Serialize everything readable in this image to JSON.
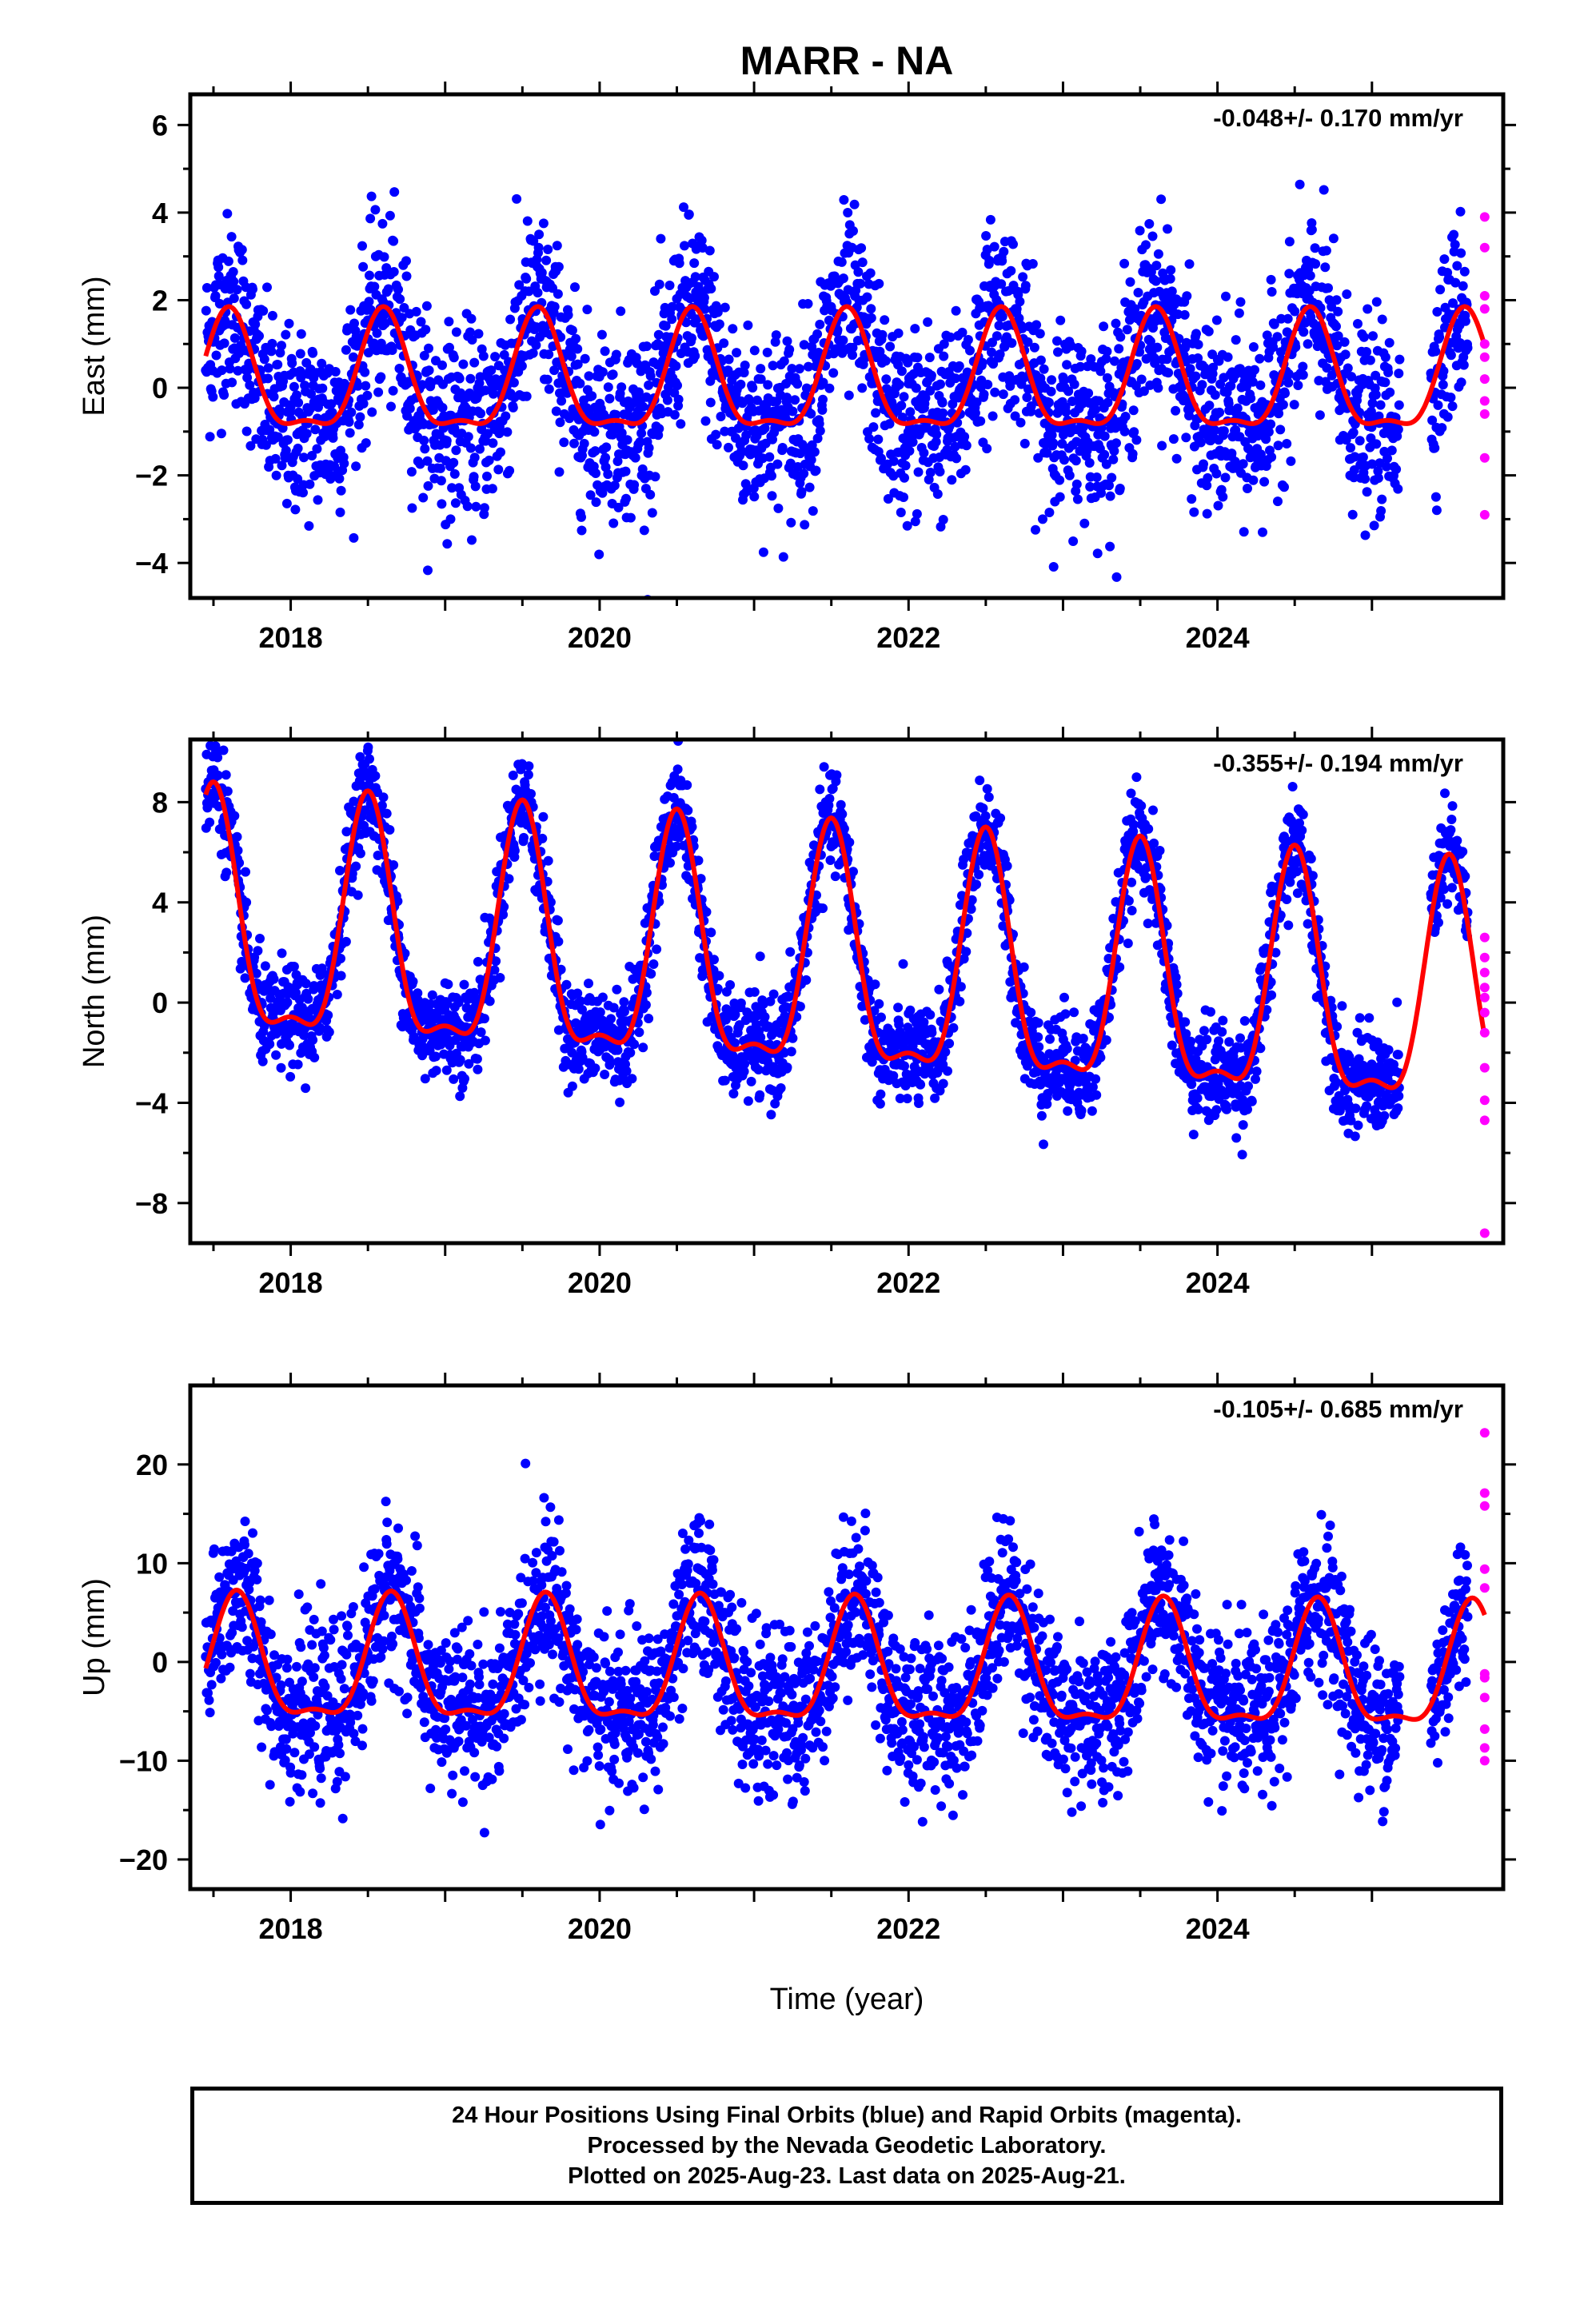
{
  "chart_data": [
    {
      "type": "scatter",
      "title": "MARR - NA",
      "ylabel": "East (mm)",
      "xlabel": "",
      "xlim": [
        2017.35,
        2025.85
      ],
      "ylim": [
        -4.8,
        6.7
      ],
      "x_ticks": [
        "2018",
        "2020",
        "2022",
        "2024"
      ],
      "y_ticks": [
        "-4",
        "-2",
        "0",
        "2",
        "4",
        "6"
      ],
      "rate_annotation": "-0.048+/- 0.170 mm/yr",
      "model": {
        "amplitude": 1.3,
        "offset": 0.1,
        "phase_peak": 0.6,
        "noise": 1.05,
        "trend": 0.0
      },
      "series": [
        {
          "name": "Final Orbits",
          "color": "#0000ff"
        },
        {
          "name": "Rapid Orbits",
          "color": "#ff00ff",
          "values": [
            3.9,
            3.2,
            2.1,
            1.8,
            1.0,
            0.7,
            0.2,
            -0.3,
            -0.6,
            -1.6,
            -2.9
          ]
        },
        {
          "name": "Fit",
          "color": "#ff0000"
        }
      ],
      "grid": false
    },
    {
      "type": "scatter",
      "title": "",
      "ylabel": "North (mm)",
      "xlabel": "",
      "xlim": [
        2017.35,
        2025.85
      ],
      "ylim": [
        -9.6,
        10.5
      ],
      "x_ticks": [
        "2018",
        "2020",
        "2022",
        "2024"
      ],
      "y_ticks": [
        "-8",
        "-4",
        "0",
        "4",
        "8"
      ],
      "rate_annotation": "-0.355+/- 0.194 mm/yr",
      "model": {
        "amplitude": 4.6,
        "offset": 2.6,
        "phase_peak": 0.5,
        "noise": 1.0,
        "trend": -0.36
      },
      "series": [
        {
          "name": "Final Orbits",
          "color": "#0000ff"
        },
        {
          "name": "Rapid Orbits",
          "color": "#ff00ff",
          "values": [
            2.6,
            1.8,
            1.2,
            0.6,
            0.2,
            -0.4,
            -1.2,
            -2.6,
            -3.9,
            -4.7,
            -9.2
          ]
        },
        {
          "name": "Fit",
          "color": "#ff0000"
        }
      ],
      "grid": false
    },
    {
      "type": "scatter",
      "title": "",
      "ylabel": "Up (mm)",
      "xlabel": "Time (year)",
      "xlim": [
        2017.35,
        2025.85
      ],
      "ylim": [
        -23,
        28
      ],
      "x_ticks": [
        "2018",
        "2020",
        "2022",
        "2024"
      ],
      "y_ticks": [
        "-20",
        "-10",
        "0",
        "10",
        "20"
      ],
      "rate_annotation": "-0.105+/- 0.685 mm/yr",
      "model": {
        "amplitude": 6.0,
        "offset": -0.8,
        "phase_peak": 0.65,
        "noise": 4.0,
        "trend": -0.1
      },
      "series": [
        {
          "name": "Final Orbits",
          "color": "#0000ff"
        },
        {
          "name": "Rapid Orbits",
          "color": "#ff00ff",
          "values": [
            23.2,
            17.1,
            15.8,
            9.4,
            7.5,
            -1.2,
            -1.6,
            -3.6,
            -6.8,
            -8.7,
            -10.0
          ]
        },
        {
          "name": "Fit",
          "color": "#ff0000"
        }
      ],
      "grid": false
    }
  ],
  "footer": {
    "line1": "24 Hour Positions Using Final Orbits (blue) and Rapid Orbits (magenta).",
    "line2": "Processed by the Nevada Geodetic Laboratory.",
    "line3": "Plotted on 2025-Aug-23. Last data on 2025-Aug-21."
  }
}
